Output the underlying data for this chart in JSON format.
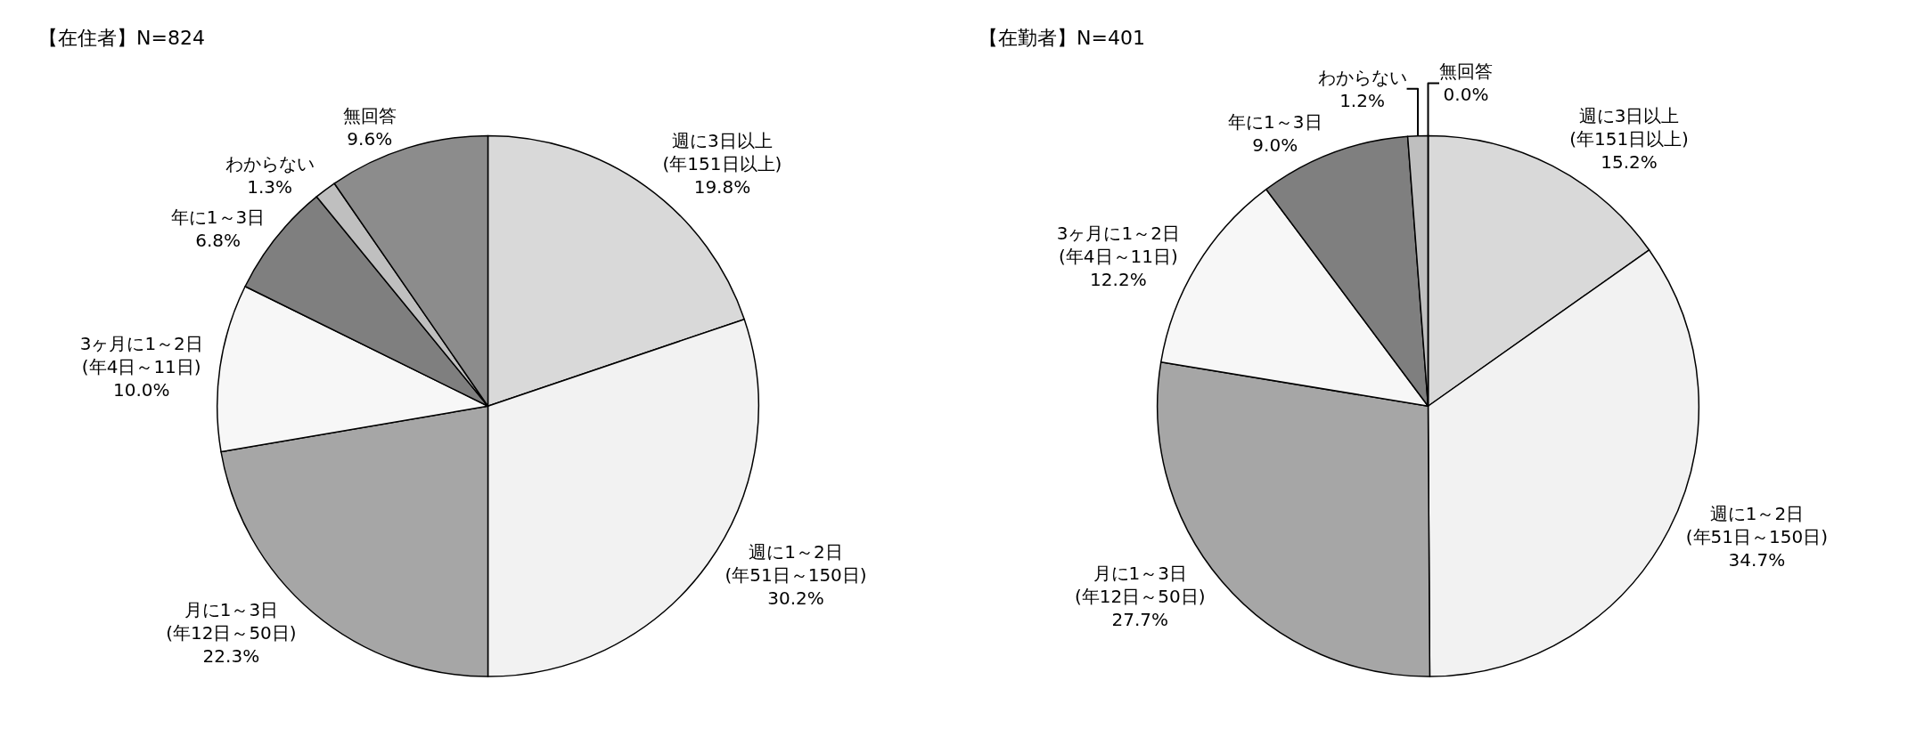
{
  "chart_data": [
    {
      "type": "pie",
      "title": "【在住者】N=824",
      "categories": [
        "週に3日以上\n(年151日以上)",
        "週に1～2日\n(年51日～150日)",
        "月に1～3日\n(年12日～50日)",
        "3ヶ月に1～2日\n(年4日～11日)",
        "年に1～3日",
        "わからない",
        "無回答"
      ],
      "values": [
        19.8,
        30.2,
        22.3,
        10.0,
        6.8,
        1.3,
        9.6
      ],
      "value_labels": [
        "19.8%",
        "30.2%",
        "22.3%",
        "10.0%",
        "6.8%",
        "1.3%",
        "9.6%"
      ],
      "colors": [
        "#d9d9d9",
        "#f2f2f2",
        "#a6a6a6",
        "#f7f7f7",
        "#7f7f7f",
        "#bfbfbf",
        "#8c8c8c"
      ],
      "legend": false
    },
    {
      "type": "pie",
      "title": "【在勤者】N=401",
      "categories": [
        "週に3日以上\n(年151日以上)",
        "週に1～2日\n(年51日～150日)",
        "月に1～3日\n(年12日～50日)",
        "3ヶ月に1～2日\n(年4日～11日)",
        "年に1～3日",
        "わからない",
        "無回答"
      ],
      "values": [
        15.2,
        34.7,
        27.7,
        12.2,
        9.0,
        1.2,
        0.0
      ],
      "value_labels": [
        "15.2%",
        "34.7%",
        "27.7%",
        "12.2%",
        "9.0%",
        "1.2%",
        "0.0%"
      ],
      "colors": [
        "#d9d9d9",
        "#f2f2f2",
        "#a6a6a6",
        "#f7f7f7",
        "#7f7f7f",
        "#bfbfbf",
        "#8c8c8c"
      ],
      "legend": false
    }
  ]
}
